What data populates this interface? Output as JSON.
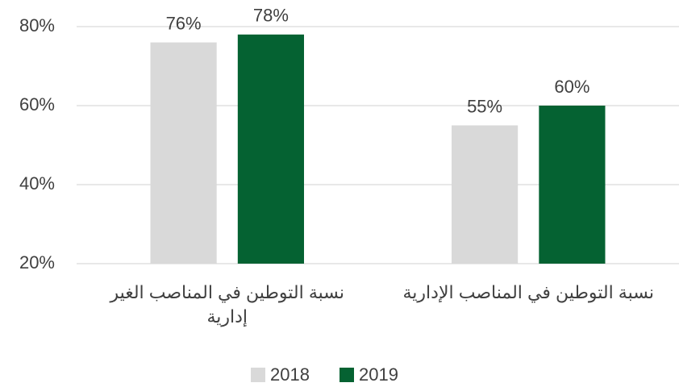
{
  "chart_data": {
    "type": "bar",
    "categories": [
      "نسبة التوطين في المناصب الغير إدارية",
      "نسبة التوطين في المناصب الإدارية"
    ],
    "series": [
      {
        "name": "2018",
        "color": "#d9d9d9",
        "values": [
          76,
          55
        ],
        "value_labels": [
          "76%",
          "55%"
        ]
      },
      {
        "name": "2019",
        "color": "#056232",
        "values": [
          78,
          60
        ],
        "value_labels": [
          "78%",
          "60%"
        ]
      }
    ],
    "ylim": [
      20,
      80
    ],
    "yticks": [
      {
        "value": 20,
        "label": "20%"
      },
      {
        "value": 40,
        "label": "40%"
      },
      {
        "value": 60,
        "label": "60%"
      },
      {
        "value": 80,
        "label": "80%"
      }
    ],
    "grid": true,
    "legend": "bottom"
  }
}
